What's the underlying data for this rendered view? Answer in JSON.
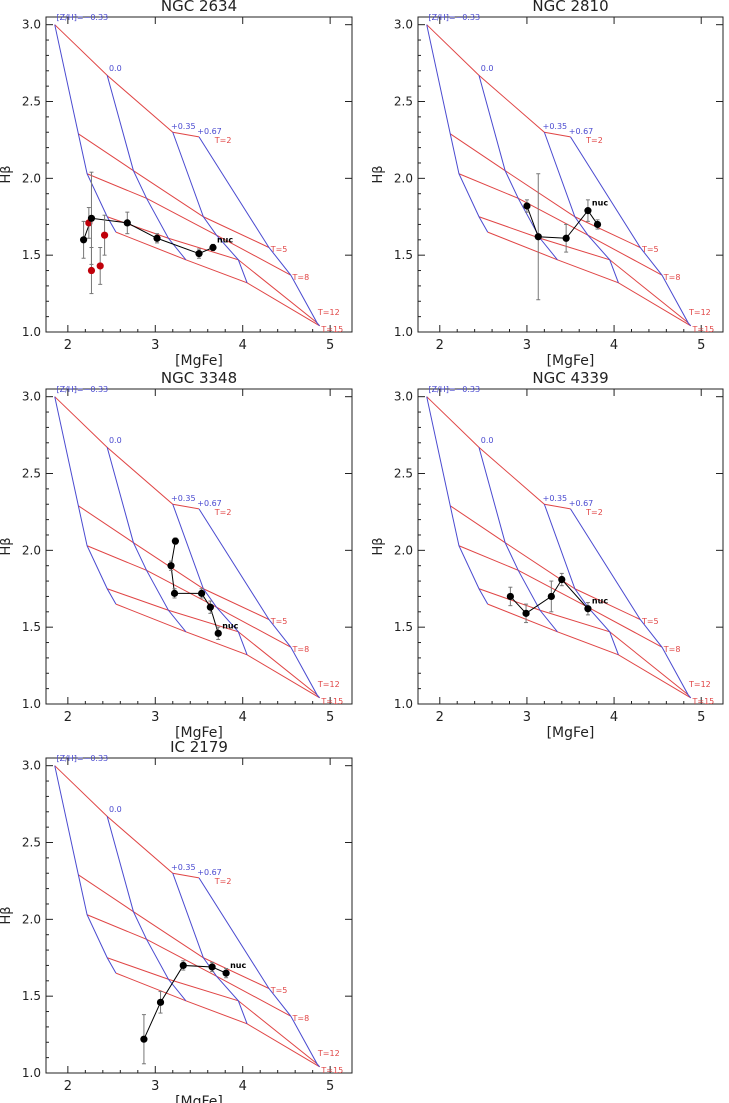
{
  "grid": {
    "metallicity_labels": [
      "[Z/H]=−0.33",
      "0.0",
      "+0.35",
      "+0.67"
    ],
    "age_labels": [
      "T=2",
      "T=5",
      "T=8",
      "T=12",
      "T=15"
    ],
    "age_models": [
      [
        [
          1.85,
          3.0
        ],
        [
          2.45,
          2.67
        ],
        [
          3.2,
          2.3
        ],
        [
          3.5,
          2.27
        ]
      ],
      [
        [
          2.12,
          2.29
        ],
        [
          2.75,
          2.05
        ],
        [
          3.55,
          1.75
        ],
        [
          4.3,
          1.55
        ]
      ],
      [
        [
          2.22,
          2.03
        ],
        [
          2.9,
          1.87
        ],
        [
          3.7,
          1.63
        ],
        [
          4.55,
          1.37
        ]
      ],
      [
        [
          2.45,
          1.75
        ],
        [
          3.15,
          1.61
        ],
        [
          3.95,
          1.47
        ],
        [
          4.85,
          1.06
        ]
      ],
      [
        [
          2.55,
          1.65
        ],
        [
          3.35,
          1.47
        ],
        [
          4.05,
          1.32
        ],
        [
          4.88,
          1.04
        ]
      ]
    ],
    "metallicity_models": [
      [
        [
          1.85,
          3.0
        ],
        [
          2.12,
          2.29
        ],
        [
          2.22,
          2.03
        ],
        [
          2.45,
          1.75
        ],
        [
          2.55,
          1.65
        ]
      ],
      [
        [
          2.45,
          2.67
        ],
        [
          2.75,
          2.05
        ],
        [
          2.9,
          1.87
        ],
        [
          3.15,
          1.61
        ],
        [
          3.35,
          1.47
        ]
      ],
      [
        [
          3.2,
          2.3
        ],
        [
          3.55,
          1.75
        ],
        [
          3.7,
          1.63
        ],
        [
          3.95,
          1.47
        ],
        [
          4.05,
          1.32
        ]
      ],
      [
        [
          3.5,
          2.27
        ],
        [
          4.3,
          1.55
        ],
        [
          4.55,
          1.37
        ],
        [
          4.85,
          1.06
        ],
        [
          4.88,
          1.04
        ]
      ]
    ]
  },
  "colors": {
    "age": "#e04545",
    "metallicity": "#4a4ad0",
    "data": "#000000",
    "red_data": "#c0000a",
    "axes": "#222222",
    "errorbar": "#777777"
  },
  "chart_data": [
    {
      "type": "scatter",
      "title": "NGC 2634",
      "xlabel": "[MgFe]",
      "ylabel": "Hβ",
      "xlim": [
        1.75,
        5.25
      ],
      "ylim": [
        1.0,
        3.05
      ],
      "xticks": [
        "2",
        "3",
        "4",
        "5"
      ],
      "yticks": [
        "1.0",
        "1.5",
        "2.0",
        "2.5",
        "3.0"
      ],
      "nuc_label": "nuc",
      "path": [
        [
          2.18,
          1.6
        ],
        [
          2.27,
          1.74
        ],
        [
          2.68,
          1.71
        ],
        [
          3.02,
          1.61
        ],
        [
          3.5,
          1.51
        ],
        [
          3.66,
          1.55
        ]
      ],
      "path_err": [
        0.12,
        0.3,
        0.07,
        0.03,
        0.03,
        0.02
      ],
      "red_points": [
        [
          2.24,
          1.71
        ],
        [
          2.42,
          1.63
        ],
        [
          2.27,
          1.4
        ],
        [
          2.37,
          1.43
        ]
      ],
      "red_err": [
        0.1,
        0.13,
        0.15,
        0.12
      ],
      "nuc": [
        3.66,
        1.55
      ]
    },
    {
      "type": "scatter",
      "title": "NGC 2810",
      "xlabel": "[MgFe]",
      "ylabel": "Hβ",
      "xlim": [
        1.75,
        5.25
      ],
      "ylim": [
        1.0,
        3.05
      ],
      "xticks": [
        "2",
        "3",
        "4",
        "5"
      ],
      "yticks": [
        "1.0",
        "1.5",
        "2.0",
        "2.5",
        "3.0"
      ],
      "nuc_label": "nuc",
      "path": [
        [
          3.0,
          1.82
        ],
        [
          3.13,
          1.62
        ],
        [
          3.45,
          1.61
        ],
        [
          3.7,
          1.79
        ],
        [
          3.81,
          1.7
        ]
      ],
      "path_err": [
        0.04,
        0.41,
        0.09,
        0.07,
        0.03
      ],
      "red_points": [],
      "red_err": [],
      "nuc": [
        3.7,
        1.79
      ]
    },
    {
      "type": "scatter",
      "title": "NGC 3348",
      "xlabel": "[MgFe]",
      "ylabel": "Hβ",
      "xlim": [
        1.75,
        5.25
      ],
      "ylim": [
        1.0,
        3.05
      ],
      "xticks": [
        "2",
        "3",
        "4",
        "5"
      ],
      "yticks": [
        "1.0",
        "1.5",
        "2.0",
        "2.5",
        "3.0"
      ],
      "nuc_label": "nuc",
      "path": [
        [
          3.23,
          2.06
        ],
        [
          3.18,
          1.9
        ],
        [
          3.22,
          1.72
        ],
        [
          3.53,
          1.72
        ],
        [
          3.63,
          1.63
        ],
        [
          3.72,
          1.46
        ]
      ],
      "path_err": [
        0.02,
        0.03,
        0.03,
        0.03,
        0.04,
        0.04
      ],
      "red_points": [],
      "red_err": [],
      "nuc": [
        3.72,
        1.46
      ]
    },
    {
      "type": "scatter",
      "title": "NGC 4339",
      "xlabel": "[MgFe]",
      "ylabel": "Hβ",
      "xlim": [
        1.75,
        5.25
      ],
      "ylim": [
        1.0,
        3.05
      ],
      "xticks": [
        "2",
        "3",
        "4",
        "5"
      ],
      "yticks": [
        "1.0",
        "1.5",
        "2.0",
        "2.5",
        "3.0"
      ],
      "nuc_label": "nuc",
      "path": [
        [
          2.81,
          1.7
        ],
        [
          2.99,
          1.59
        ],
        [
          3.28,
          1.7
        ],
        [
          3.4,
          1.81
        ],
        [
          3.7,
          1.62
        ]
      ],
      "path_err": [
        0.06,
        0.06,
        0.1,
        0.04,
        0.04
      ],
      "red_points": [],
      "red_err": [],
      "nuc": [
        3.7,
        1.62
      ]
    },
    {
      "type": "scatter",
      "title": "IC 2179",
      "xlabel": "[MgFe]",
      "ylabel": "Hβ",
      "xlim": [
        1.75,
        5.25
      ],
      "ylim": [
        1.0,
        3.05
      ],
      "xticks": [
        "2",
        "3",
        "4",
        "5"
      ],
      "yticks": [
        "1.0",
        "1.5",
        "2.0",
        "2.5",
        "3.0"
      ],
      "nuc_label": "nuc",
      "path": [
        [
          2.87,
          1.22
        ],
        [
          3.06,
          1.46
        ],
        [
          3.32,
          1.7
        ],
        [
          3.65,
          1.69
        ],
        [
          3.81,
          1.65
        ]
      ],
      "path_err": [
        0.16,
        0.07,
        0.03,
        0.03,
        0.03
      ],
      "red_points": [],
      "red_err": [],
      "nuc": [
        3.81,
        1.65
      ]
    }
  ]
}
